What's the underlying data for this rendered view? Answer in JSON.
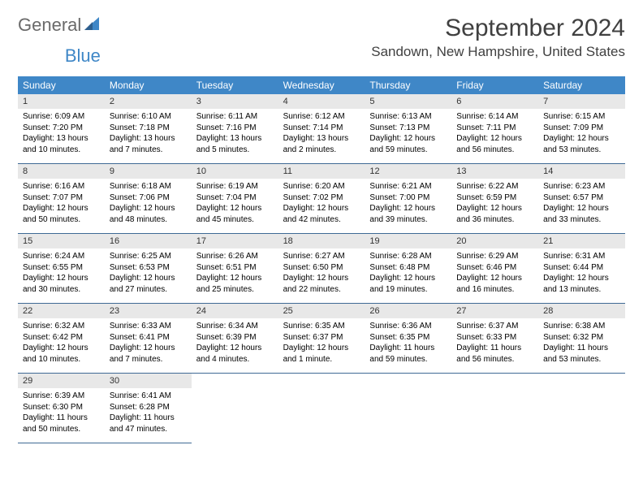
{
  "logo": {
    "text1": "General",
    "text2": "Blue"
  },
  "title": "September 2024",
  "location": "Sandown, New Hampshire, United States",
  "colors": {
    "header_bg": "#3f87c7",
    "header_text": "#ffffff",
    "daynum_bg": "#e8e8e8",
    "cell_border": "#3f6a95",
    "logo_gray": "#6a6a6a",
    "logo_blue": "#3f87c7",
    "title_color": "#404040",
    "page_bg": "#ffffff"
  },
  "weekdays": [
    "Sunday",
    "Monday",
    "Tuesday",
    "Wednesday",
    "Thursday",
    "Friday",
    "Saturday"
  ],
  "weeks": [
    [
      {
        "n": "1",
        "sunrise": "6:09 AM",
        "sunset": "7:20 PM",
        "daylight": "13 hours and 10 minutes."
      },
      {
        "n": "2",
        "sunrise": "6:10 AM",
        "sunset": "7:18 PM",
        "daylight": "13 hours and 7 minutes."
      },
      {
        "n": "3",
        "sunrise": "6:11 AM",
        "sunset": "7:16 PM",
        "daylight": "13 hours and 5 minutes."
      },
      {
        "n": "4",
        "sunrise": "6:12 AM",
        "sunset": "7:14 PM",
        "daylight": "13 hours and 2 minutes."
      },
      {
        "n": "5",
        "sunrise": "6:13 AM",
        "sunset": "7:13 PM",
        "daylight": "12 hours and 59 minutes."
      },
      {
        "n": "6",
        "sunrise": "6:14 AM",
        "sunset": "7:11 PM",
        "daylight": "12 hours and 56 minutes."
      },
      {
        "n": "7",
        "sunrise": "6:15 AM",
        "sunset": "7:09 PM",
        "daylight": "12 hours and 53 minutes."
      }
    ],
    [
      {
        "n": "8",
        "sunrise": "6:16 AM",
        "sunset": "7:07 PM",
        "daylight": "12 hours and 50 minutes."
      },
      {
        "n": "9",
        "sunrise": "6:18 AM",
        "sunset": "7:06 PM",
        "daylight": "12 hours and 48 minutes."
      },
      {
        "n": "10",
        "sunrise": "6:19 AM",
        "sunset": "7:04 PM",
        "daylight": "12 hours and 45 minutes."
      },
      {
        "n": "11",
        "sunrise": "6:20 AM",
        "sunset": "7:02 PM",
        "daylight": "12 hours and 42 minutes."
      },
      {
        "n": "12",
        "sunrise": "6:21 AM",
        "sunset": "7:00 PM",
        "daylight": "12 hours and 39 minutes."
      },
      {
        "n": "13",
        "sunrise": "6:22 AM",
        "sunset": "6:59 PM",
        "daylight": "12 hours and 36 minutes."
      },
      {
        "n": "14",
        "sunrise": "6:23 AM",
        "sunset": "6:57 PM",
        "daylight": "12 hours and 33 minutes."
      }
    ],
    [
      {
        "n": "15",
        "sunrise": "6:24 AM",
        "sunset": "6:55 PM",
        "daylight": "12 hours and 30 minutes."
      },
      {
        "n": "16",
        "sunrise": "6:25 AM",
        "sunset": "6:53 PM",
        "daylight": "12 hours and 27 minutes."
      },
      {
        "n": "17",
        "sunrise": "6:26 AM",
        "sunset": "6:51 PM",
        "daylight": "12 hours and 25 minutes."
      },
      {
        "n": "18",
        "sunrise": "6:27 AM",
        "sunset": "6:50 PM",
        "daylight": "12 hours and 22 minutes."
      },
      {
        "n": "19",
        "sunrise": "6:28 AM",
        "sunset": "6:48 PM",
        "daylight": "12 hours and 19 minutes."
      },
      {
        "n": "20",
        "sunrise": "6:29 AM",
        "sunset": "6:46 PM",
        "daylight": "12 hours and 16 minutes."
      },
      {
        "n": "21",
        "sunrise": "6:31 AM",
        "sunset": "6:44 PM",
        "daylight": "12 hours and 13 minutes."
      }
    ],
    [
      {
        "n": "22",
        "sunrise": "6:32 AM",
        "sunset": "6:42 PM",
        "daylight": "12 hours and 10 minutes."
      },
      {
        "n": "23",
        "sunrise": "6:33 AM",
        "sunset": "6:41 PM",
        "daylight": "12 hours and 7 minutes."
      },
      {
        "n": "24",
        "sunrise": "6:34 AM",
        "sunset": "6:39 PM",
        "daylight": "12 hours and 4 minutes."
      },
      {
        "n": "25",
        "sunrise": "6:35 AM",
        "sunset": "6:37 PM",
        "daylight": "12 hours and 1 minute."
      },
      {
        "n": "26",
        "sunrise": "6:36 AM",
        "sunset": "6:35 PM",
        "daylight": "11 hours and 59 minutes."
      },
      {
        "n": "27",
        "sunrise": "6:37 AM",
        "sunset": "6:33 PM",
        "daylight": "11 hours and 56 minutes."
      },
      {
        "n": "28",
        "sunrise": "6:38 AM",
        "sunset": "6:32 PM",
        "daylight": "11 hours and 53 minutes."
      }
    ],
    [
      {
        "n": "29",
        "sunrise": "6:39 AM",
        "sunset": "6:30 PM",
        "daylight": "11 hours and 50 minutes."
      },
      {
        "n": "30",
        "sunrise": "6:41 AM",
        "sunset": "6:28 PM",
        "daylight": "11 hours and 47 minutes."
      },
      null,
      null,
      null,
      null,
      null
    ]
  ],
  "labels": {
    "sunrise": "Sunrise: ",
    "sunset": "Sunset: ",
    "daylight": "Daylight: "
  }
}
